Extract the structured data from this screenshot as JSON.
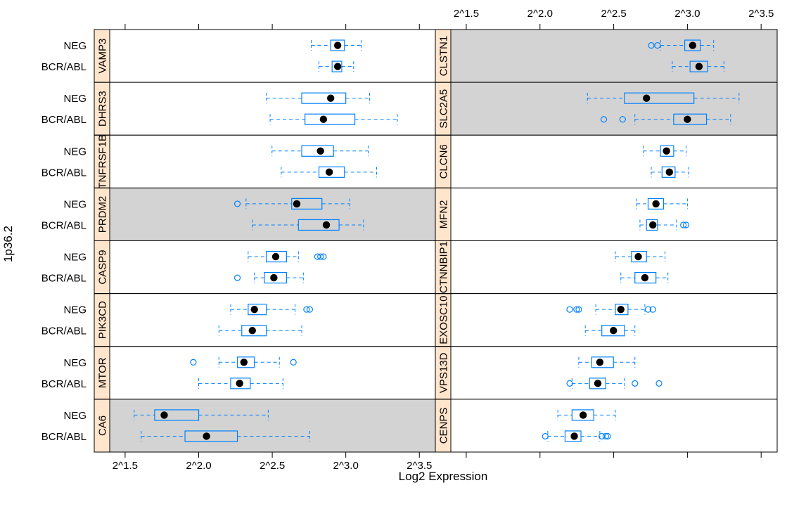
{
  "colors": {
    "box": "#0080ff",
    "strip": "#ffe5cc",
    "shade": "#d3d3d3",
    "median": "#000000"
  },
  "chart_data": {
    "type": "box",
    "title": "",
    "xlabel": "Log2 Expression",
    "ylabel": "1p36.2",
    "x_scale": "log2",
    "xlim": [
      2.63,
      12.2
    ],
    "x_ticks": [
      2.828,
      4,
      5.657,
      8,
      11.314
    ],
    "x_tick_labels": [
      "2^1.5",
      "2^2.0",
      "2^2.5",
      "2^3.0",
      "2^3.5"
    ],
    "groups": [
      "NEG",
      "BCR/ABL"
    ],
    "panels": [
      {
        "gene": "VAMP3",
        "column": "left",
        "shaded": false,
        "boxes": [
          {
            "group": "NEG",
            "whisker_low": 6.8,
            "q1": 7.45,
            "median": 7.7,
            "q3": 7.95,
            "whisker_high": 8.6,
            "outliers": []
          },
          {
            "group": "BCR/ABL",
            "whisker_low": 7.05,
            "q1": 7.5,
            "median": 7.7,
            "q3": 7.85,
            "whisker_high": 8.3,
            "outliers": []
          }
        ]
      },
      {
        "gene": "DHRS3",
        "column": "left",
        "shaded": false,
        "boxes": [
          {
            "group": "NEG",
            "whisker_low": 5.5,
            "q1": 6.5,
            "median": 7.45,
            "q3": 8.0,
            "whisker_high": 8.95,
            "outliers": []
          },
          {
            "group": "BCR/ABL",
            "whisker_low": 5.6,
            "q1": 6.6,
            "median": 7.2,
            "q3": 8.35,
            "whisker_high": 10.2,
            "outliers": []
          }
        ]
      },
      {
        "gene": "TNFRSF1B",
        "column": "left",
        "shaded": false,
        "boxes": [
          {
            "group": "NEG",
            "whisker_low": 5.65,
            "q1": 6.5,
            "median": 7.1,
            "q3": 7.55,
            "whisker_high": 8.9,
            "outliers": []
          },
          {
            "group": "BCR/ABL",
            "whisker_low": 5.9,
            "q1": 7.05,
            "median": 7.4,
            "q3": 7.95,
            "whisker_high": 9.25,
            "outliers": []
          }
        ]
      },
      {
        "gene": "PRDM2",
        "column": "left",
        "shaded": true,
        "boxes": [
          {
            "group": "NEG",
            "whisker_low": 5.0,
            "q1": 6.2,
            "median": 6.35,
            "q3": 7.15,
            "whisker_high": 8.15,
            "outliers": [
              4.8
            ]
          },
          {
            "group": "BCR/ABL",
            "whisker_low": 5.15,
            "q1": 6.4,
            "median": 7.3,
            "q3": 7.75,
            "whisker_high": 8.7,
            "outliers": []
          }
        ]
      },
      {
        "gene": "CASP9",
        "column": "left",
        "shaded": false,
        "boxes": [
          {
            "group": "NEG",
            "whisker_low": 5.05,
            "q1": 5.5,
            "median": 5.75,
            "q3": 6.05,
            "whisker_high": 6.4,
            "outliers": [
              7.0,
              7.1,
              7.2
            ]
          },
          {
            "group": "BCR/ABL",
            "whisker_low": 5.2,
            "q1": 5.45,
            "median": 5.7,
            "q3": 6.05,
            "whisker_high": 6.55,
            "outliers": [
              4.8
            ]
          }
        ]
      },
      {
        "gene": "PIK3CD",
        "column": "left",
        "shaded": false,
        "boxes": [
          {
            "group": "NEG",
            "whisker_low": 4.65,
            "q1": 5.05,
            "median": 5.2,
            "q3": 5.5,
            "whisker_high": 6.3,
            "outliers": [
              6.65,
              6.75
            ]
          },
          {
            "group": "BCR/ABL",
            "whisker_low": 4.4,
            "q1": 4.9,
            "median": 5.15,
            "q3": 5.5,
            "whisker_high": 6.5,
            "outliers": []
          }
        ]
      },
      {
        "gene": "MTOR",
        "column": "left",
        "shaded": false,
        "boxes": [
          {
            "group": "NEG",
            "whisker_low": 4.4,
            "q1": 4.8,
            "median": 4.95,
            "q3": 5.2,
            "whisker_high": 5.85,
            "outliers": [
              3.9,
              6.25
            ]
          },
          {
            "group": "BCR/ABL",
            "whisker_low": 4.0,
            "q1": 4.65,
            "median": 4.85,
            "q3": 5.1,
            "whisker_high": 5.95,
            "outliers": []
          }
        ]
      },
      {
        "gene": "CA6",
        "column": "left",
        "shaded": true,
        "boxes": [
          {
            "group": "NEG",
            "whisker_low": 2.95,
            "q1": 3.25,
            "median": 3.4,
            "q3": 4.0,
            "whisker_high": 5.55,
            "outliers": []
          },
          {
            "group": "BCR/ABL",
            "whisker_low": 3.05,
            "q1": 3.75,
            "median": 4.15,
            "q3": 4.8,
            "whisker_high": 6.75,
            "outliers": []
          }
        ]
      },
      {
        "gene": "CLSTN1",
        "column": "right",
        "shaded": true,
        "boxes": [
          {
            "group": "NEG",
            "whisker_low": 7.05,
            "q1": 7.9,
            "median": 8.2,
            "q3": 8.5,
            "whisker_high": 9.05,
            "outliers": [
              6.75,
              6.95
            ]
          },
          {
            "group": "BCR/ABL",
            "whisker_low": 7.45,
            "q1": 8.1,
            "median": 8.45,
            "q3": 8.8,
            "whisker_high": 9.5,
            "outliers": []
          }
        ]
      },
      {
        "gene": "SLC2A5",
        "column": "right",
        "shaded": true,
        "boxes": [
          {
            "group": "NEG",
            "whisker_low": 5.0,
            "q1": 5.95,
            "median": 6.6,
            "q3": 8.25,
            "whisker_high": 10.2,
            "outliers": []
          },
          {
            "group": "BCR/ABL",
            "whisker_low": 6.25,
            "q1": 7.5,
            "median": 8.0,
            "q3": 8.75,
            "whisker_high": 9.8,
            "outliers": [
              5.4,
              5.9
            ]
          }
        ]
      },
      {
        "gene": "CLCN6",
        "column": "right",
        "shaded": false,
        "boxes": [
          {
            "group": "NEG",
            "whisker_low": 6.5,
            "q1": 7.05,
            "median": 7.25,
            "q3": 7.5,
            "whisker_high": 7.95,
            "outliers": []
          },
          {
            "group": "BCR/ABL",
            "whisker_low": 6.75,
            "q1": 7.1,
            "median": 7.35,
            "q3": 7.55,
            "whisker_high": 8.05,
            "outliers": []
          }
        ]
      },
      {
        "gene": "MFN2",
        "column": "right",
        "shaded": false,
        "boxes": [
          {
            "group": "NEG",
            "whisker_low": 6.3,
            "q1": 6.65,
            "median": 6.9,
            "q3": 7.15,
            "whisker_high": 8.0,
            "outliers": []
          },
          {
            "group": "BCR/ABL",
            "whisker_low": 6.4,
            "q1": 6.6,
            "median": 6.8,
            "q3": 6.95,
            "whisker_high": 7.6,
            "outliers": [
              7.85,
              7.95
            ]
          }
        ]
      },
      {
        "gene": "CTNNBIP1",
        "column": "right",
        "shaded": false,
        "boxes": [
          {
            "group": "NEG",
            "whisker_low": 5.7,
            "q1": 6.15,
            "median": 6.35,
            "q3": 6.6,
            "whisker_high": 7.2,
            "outliers": []
          },
          {
            "group": "BCR/ABL",
            "whisker_low": 5.85,
            "q1": 6.25,
            "median": 6.55,
            "q3": 6.9,
            "whisker_high": 7.3,
            "outliers": []
          }
        ]
      },
      {
        "gene": "EXOSC10",
        "column": "right",
        "shaded": false,
        "boxes": [
          {
            "group": "NEG",
            "whisker_low": 5.2,
            "q1": 5.7,
            "median": 5.85,
            "q3": 6.05,
            "whisker_high": 6.55,
            "outliers": [
              4.6,
              4.75,
              4.8,
              6.65,
              6.8
            ]
          },
          {
            "group": "BCR/ABL",
            "whisker_low": 4.95,
            "q1": 5.35,
            "median": 5.65,
            "q3": 5.95,
            "whisker_high": 6.25,
            "outliers": []
          }
        ]
      },
      {
        "gene": "VPS13D",
        "column": "right",
        "shaded": false,
        "boxes": [
          {
            "group": "NEG",
            "whisker_low": 4.8,
            "q1": 5.1,
            "median": 5.3,
            "q3": 5.65,
            "whisker_high": 6.25,
            "outliers": []
          },
          {
            "group": "BCR/ABL",
            "whisker_low": 4.65,
            "q1": 5.05,
            "median": 5.25,
            "q3": 5.45,
            "whisker_high": 5.95,
            "outliers": [
              4.6,
              6.25,
              7.0
            ]
          }
        ]
      },
      {
        "gene": "CENPS",
        "column": "right",
        "shaded": false,
        "boxes": [
          {
            "group": "NEG",
            "whisker_low": 4.35,
            "q1": 4.65,
            "median": 4.9,
            "q3": 5.15,
            "whisker_high": 5.7,
            "outliers": []
          },
          {
            "group": "BCR/ABL",
            "whisker_low": 4.15,
            "q1": 4.5,
            "median": 4.7,
            "q3": 4.85,
            "whisker_high": 5.3,
            "outliers": [
              4.1,
              5.35,
              5.45,
              5.5
            ]
          }
        ]
      }
    ]
  }
}
